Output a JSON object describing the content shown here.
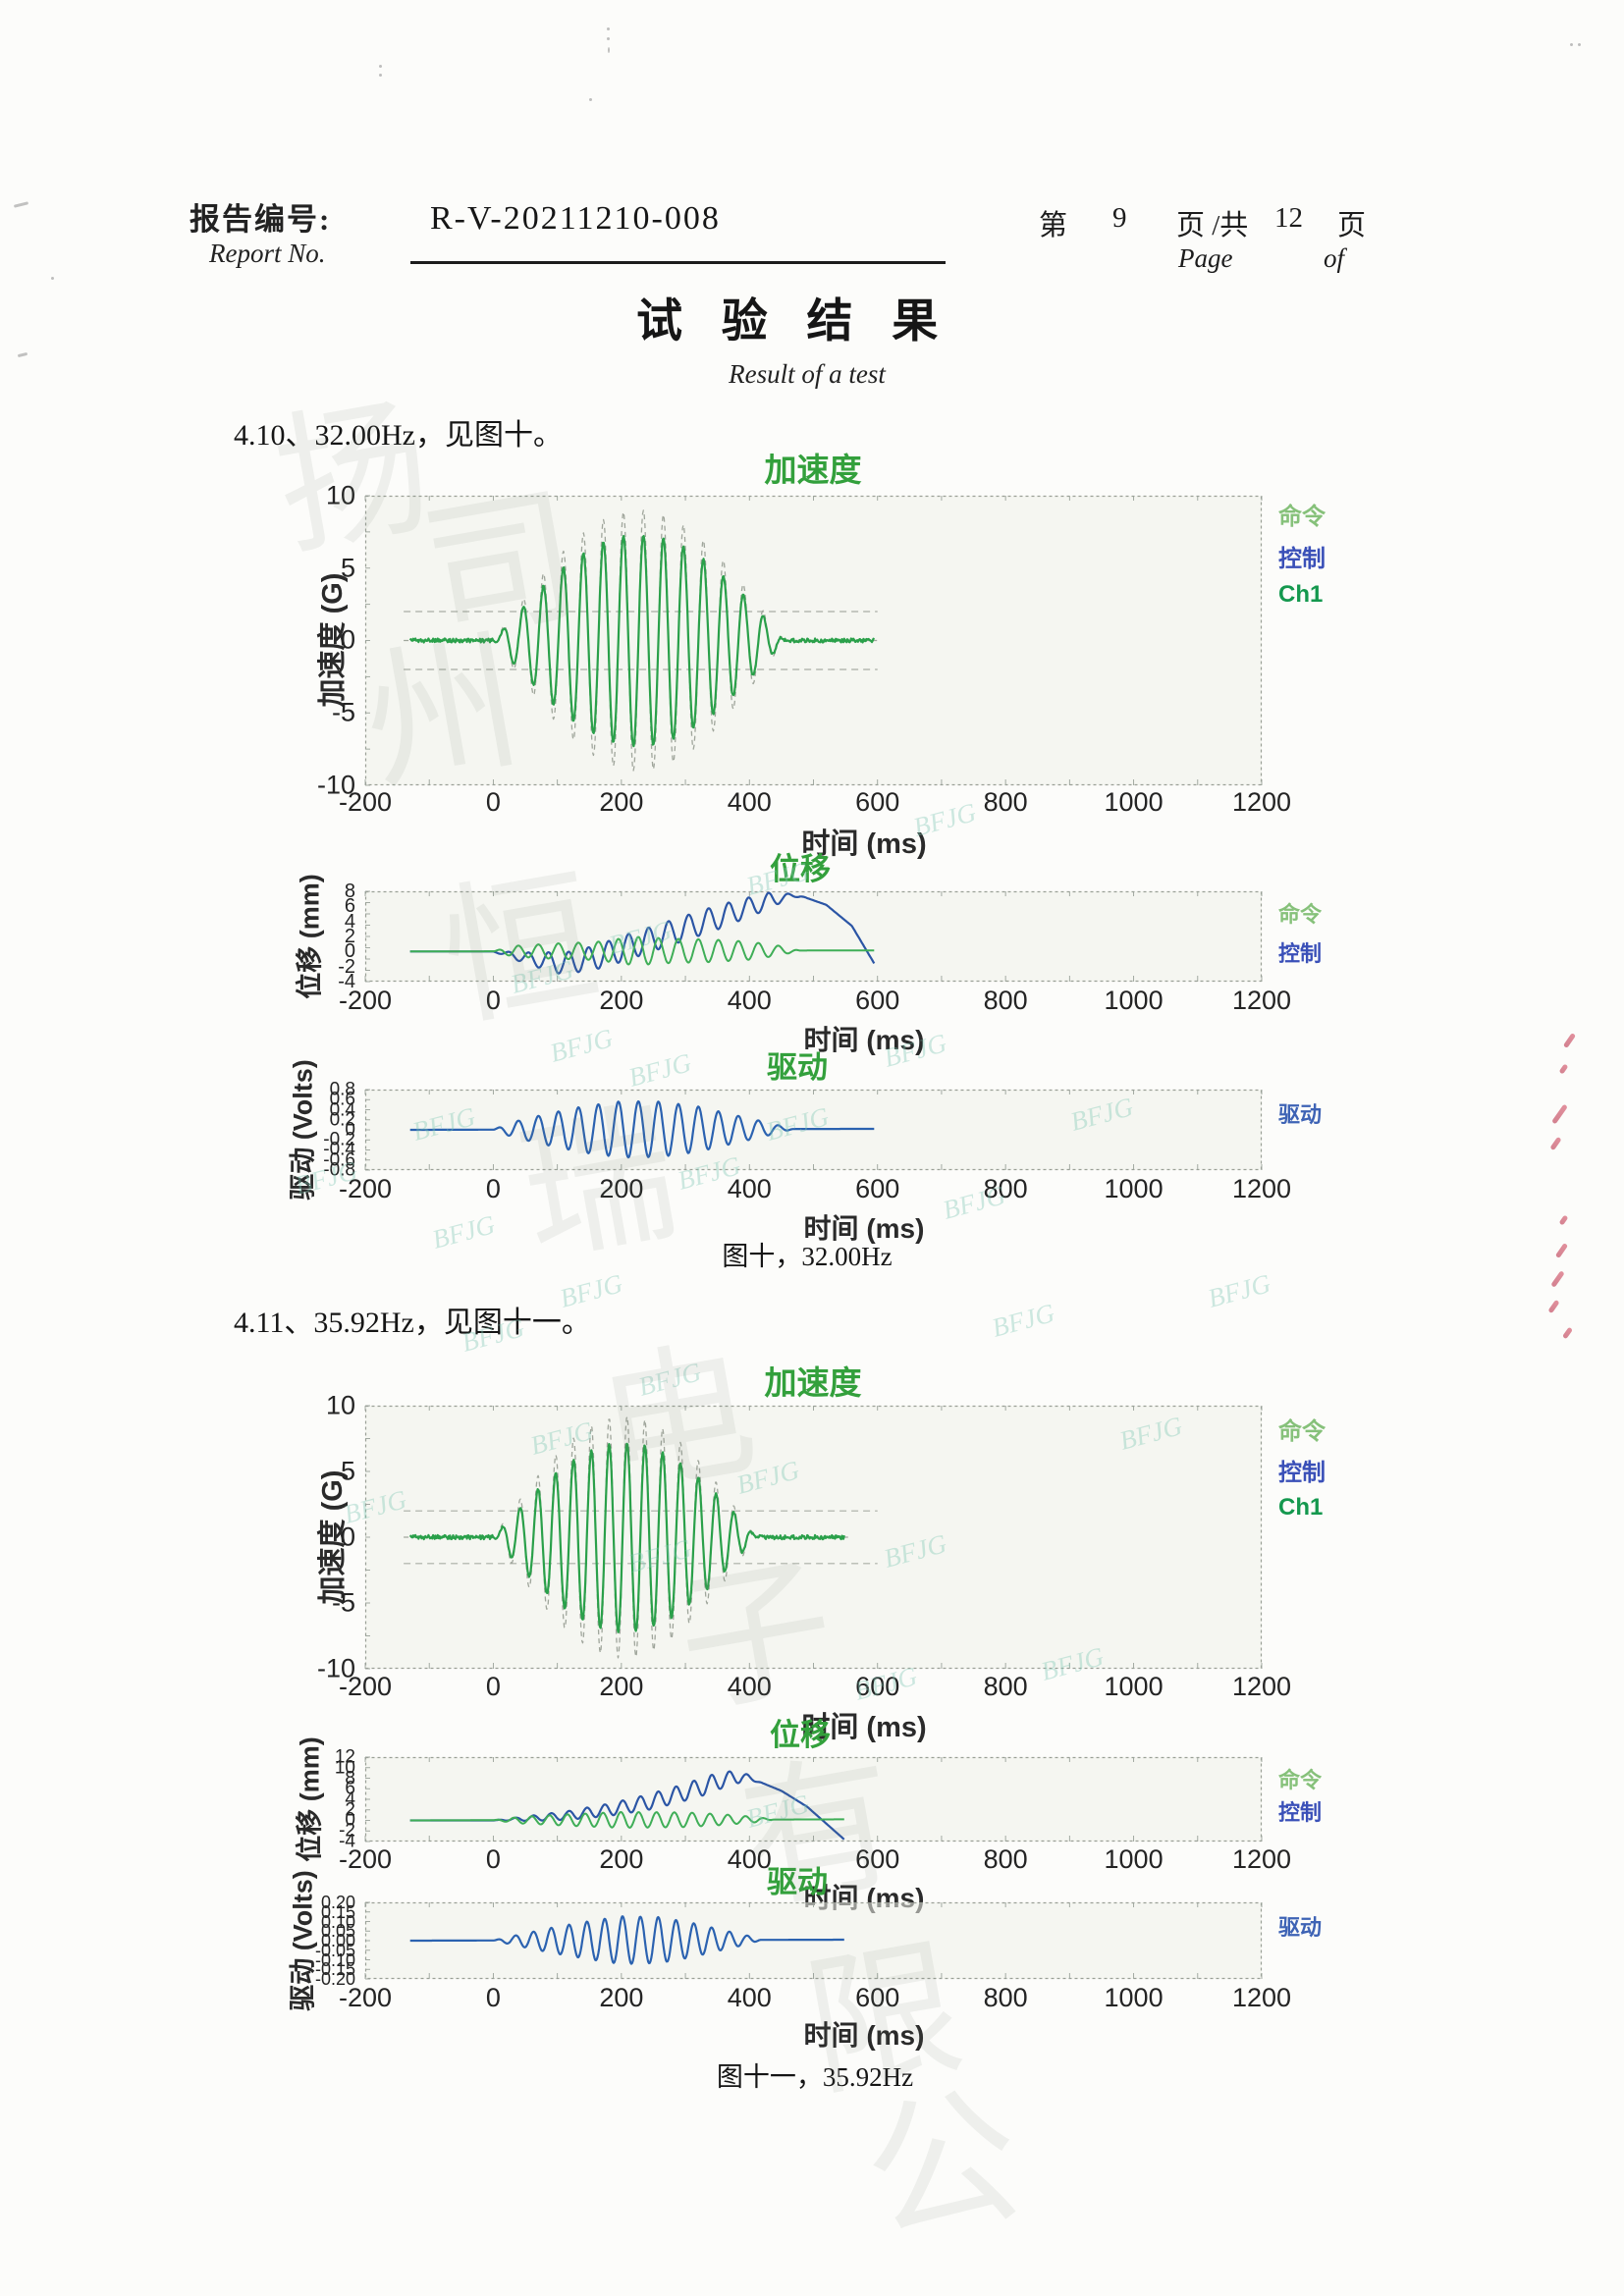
{
  "page": {
    "header": {
      "report_label_zh": "报告编号:",
      "report_label_en": "Report No.",
      "report_value": "R-V-20211210-008",
      "page_label_prefix": "第",
      "page_number": "9",
      "page_label_mid": "页 /共",
      "page_total": "12",
      "page_label_suffix": "页",
      "page_en": "Page",
      "of_en": "of"
    },
    "title_zh": "试 验 结 果",
    "subtitle_en": "Result of a test",
    "sections": [
      {
        "heading": "4.10、32.00Hz，见图十。",
        "caption": "图十，32.00Hz"
      },
      {
        "heading": "4.11、35.92Hz，见图十一。",
        "caption": "图十一，35.92Hz"
      }
    ],
    "watermarks": {
      "script_text": "BFJG",
      "company_text": "扬州恒瑞电子有限公司"
    }
  },
  "chart_data": [
    {
      "id": "fig10-acceleration",
      "type": "line",
      "title": "加速度",
      "title_color": "#33a03c",
      "ylabel": "加速度 (G)",
      "xlabel": "时间 (ms)",
      "xlim": [
        -200,
        1200
      ],
      "ylim": [
        -10,
        10
      ],
      "xticks": [
        "-200",
        "0",
        "200",
        "400",
        "600",
        "800",
        "1000",
        "1200"
      ],
      "yticks": [
        "10",
        "5",
        "0",
        "-5",
        "-10"
      ],
      "legend": [
        {
          "label": "命令",
          "color": "#86c17a"
        },
        {
          "label": "控制",
          "color": "#3a50b8"
        },
        {
          "label": "Ch1",
          "color": "#14984e"
        }
      ],
      "guides": {
        "y": [
          2,
          -2
        ],
        "color": "#a9ada5"
      },
      "series": [
        {
          "name": "command-tolerance",
          "model": "tone_burst",
          "freq_hz": 32,
          "t_start": 0,
          "t_end": 455,
          "peak": 9.0,
          "noise": 0,
          "t_min": -140,
          "t_max": 600,
          "color": "#a0a69c",
          "dash": "5 4",
          "width": 1.3
        },
        {
          "name": "ch1-response",
          "model": "tone_burst",
          "freq_hz": 32,
          "t_start": 0,
          "t_end": 455,
          "peak": 7.3,
          "noise": 0.14,
          "t_min": -130,
          "t_max": 595,
          "color": "#2aa04a",
          "dash": "",
          "width": 2.2
        }
      ]
    },
    {
      "id": "fig10-displacement",
      "type": "line",
      "title": "位移",
      "title_color": "#33a03c",
      "ylabel": "位移 (mm)",
      "xlabel": "时间 (ms)",
      "xlim": [
        -200,
        1200
      ],
      "ylim": [
        -4,
        8
      ],
      "xticks": [
        "-200",
        "0",
        "200",
        "400",
        "600",
        "800",
        "1000",
        "1200"
      ],
      "yticks": [
        "8",
        "6",
        "4",
        "2",
        "0",
        "-2",
        "-4"
      ],
      "legend": [
        {
          "label": "命令",
          "color": "#86c17a"
        },
        {
          "label": "控制",
          "color": "#3a50b8"
        }
      ],
      "series": [
        {
          "name": "control",
          "model": "mean_osc",
          "freq_hz": 32,
          "phase": 3.1,
          "color": "#2b55a5",
          "width": 2.2,
          "t_min": -130,
          "t_max": 595,
          "mean": [
            [
              -130,
              0
            ],
            [
              0,
              0
            ],
            [
              60,
              -1.0
            ],
            [
              110,
              -1.6
            ],
            [
              160,
              -0.8
            ],
            [
              210,
              0.6
            ],
            [
              260,
              2.0
            ],
            [
              310,
              3.4
            ],
            [
              360,
              4.8
            ],
            [
              410,
              6.2
            ],
            [
              450,
              7.2
            ],
            [
              480,
              7.4
            ],
            [
              520,
              6.2
            ],
            [
              560,
              3.4
            ],
            [
              595,
              -1.6
            ]
          ],
          "amp": [
            [
              -130,
              0
            ],
            [
              0,
              0
            ],
            [
              40,
              0.6
            ],
            [
              100,
              1.4
            ],
            [
              200,
              1.7
            ],
            [
              350,
              1.6
            ],
            [
              430,
              1.1
            ],
            [
              470,
              0.2
            ],
            [
              490,
              0
            ],
            [
              595,
              0
            ]
          ]
        },
        {
          "name": "command",
          "model": "mean_osc",
          "freq_hz": 32,
          "phase": 0,
          "color": "#3fae57",
          "width": 2.0,
          "t_min": -130,
          "t_max": 595,
          "mean": [
            [
              -130,
              0
            ],
            [
              595,
              0.15
            ]
          ],
          "amp": [
            [
              -130,
              0
            ],
            [
              0,
              0
            ],
            [
              30,
              0.7
            ],
            [
              90,
              1.0
            ],
            [
              160,
              1.2
            ],
            [
              220,
              1.9
            ],
            [
              280,
              1.6
            ],
            [
              340,
              1.5
            ],
            [
              400,
              1.2
            ],
            [
              450,
              0.6
            ],
            [
              478,
              0
            ],
            [
              595,
              0
            ]
          ]
        }
      ]
    },
    {
      "id": "fig10-drive",
      "type": "line",
      "title": "驱动",
      "title_color": "#33a03c",
      "ylabel": "驱动 (Volts)",
      "xlabel": "时间 (ms)",
      "xlim": [
        -200,
        1200
      ],
      "ylim": [
        -0.8,
        0.8
      ],
      "xticks": [
        "-200",
        "0",
        "200",
        "400",
        "600",
        "800",
        "1000",
        "1200"
      ],
      "yticks": [
        "0.8",
        "0.6",
        "0.4",
        "0.2",
        "0",
        "-0.2",
        "-0.4",
        "-0.6",
        "-0.8"
      ],
      "legend": [
        {
          "label": "驱动",
          "color": "#3e63b5"
        }
      ],
      "series": [
        {
          "name": "drive",
          "model": "mean_osc",
          "freq_hz": 32,
          "phase": 0,
          "color": "#2b62b0",
          "width": 2.2,
          "t_min": -130,
          "t_max": 595,
          "mean": [
            [
              -130,
              0
            ],
            [
              595,
              0.02
            ]
          ],
          "amp": [
            [
              -130,
              0
            ],
            [
              0,
              0
            ],
            [
              30,
              0.15
            ],
            [
              80,
              0.3
            ],
            [
              140,
              0.46
            ],
            [
              200,
              0.56
            ],
            [
              260,
              0.55
            ],
            [
              320,
              0.45
            ],
            [
              370,
              0.3
            ],
            [
              415,
              0.17
            ],
            [
              450,
              0.06
            ],
            [
              468,
              0
            ],
            [
              595,
              0
            ]
          ]
        }
      ]
    },
    {
      "id": "fig11-acceleration",
      "type": "line",
      "title": "加速度",
      "title_color": "#33a03c",
      "ylabel": "加速度 (G)",
      "xlabel": "时间 (ms)",
      "xlim": [
        -200,
        1200
      ],
      "ylim": [
        -10,
        10
      ],
      "xticks": [
        "-200",
        "0",
        "200",
        "400",
        "600",
        "800",
        "1000",
        "1200"
      ],
      "yticks": [
        "10",
        "5",
        "0",
        "-5",
        "-10"
      ],
      "legend": [
        {
          "label": "命令",
          "color": "#86c17a"
        },
        {
          "label": "控制",
          "color": "#3a50b8"
        },
        {
          "label": "Ch1",
          "color": "#14984e"
        }
      ],
      "guides": {
        "y": [
          2,
          -2
        ],
        "color": "#a9ada5"
      },
      "series": [
        {
          "name": "command-tolerance",
          "model": "tone_burst",
          "freq_hz": 35.92,
          "t_start": 0,
          "t_end": 410,
          "peak": 9.2,
          "noise": 0,
          "t_min": -140,
          "t_max": 560,
          "color": "#a0a69c",
          "dash": "5 4",
          "width": 1.3
        },
        {
          "name": "ch1-response",
          "model": "tone_burst",
          "freq_hz": 35.92,
          "t_start": 0,
          "t_end": 410,
          "peak": 7.2,
          "noise": 0.16,
          "t_min": -130,
          "t_max": 548,
          "color": "#2aa04a",
          "dash": "",
          "width": 2.2
        }
      ]
    },
    {
      "id": "fig11-displacement",
      "type": "line",
      "title": "位移",
      "title_color": "#33a03c",
      "ylabel": "位移 (mm)",
      "xlabel": "时间 (ms)",
      "xlim": [
        -200,
        1200
      ],
      "ylim": [
        -4,
        12
      ],
      "xticks": [
        "-200",
        "0",
        "200",
        "400",
        "600",
        "800",
        "1000",
        "1200"
      ],
      "yticks": [
        "12",
        "10",
        "8",
        "6",
        "4",
        "2",
        "0",
        "-2",
        "-4"
      ],
      "legend": [
        {
          "label": "命令",
          "color": "#86c17a"
        },
        {
          "label": "控制",
          "color": "#3a50b8"
        }
      ],
      "series": [
        {
          "name": "control",
          "model": "mean_osc",
          "freq_hz": 35.92,
          "phase": 0,
          "color": "#2b55a5",
          "width": 2.2,
          "t_min": -130,
          "t_max": 548,
          "mean": [
            [
              -130,
              0
            ],
            [
              0,
              0
            ],
            [
              60,
              0.4
            ],
            [
              120,
              1.0
            ],
            [
              180,
              2.0
            ],
            [
              240,
              3.4
            ],
            [
              290,
              5.0
            ],
            [
              330,
              6.5
            ],
            [
              365,
              7.9
            ],
            [
              388,
              8.3
            ],
            [
              410,
              7.6
            ],
            [
              450,
              5.6
            ],
            [
              490,
              2.6
            ],
            [
              548,
              -3.6
            ]
          ],
          "amp": [
            [
              -130,
              0
            ],
            [
              0,
              0
            ],
            [
              60,
              0.5
            ],
            [
              150,
              1.0
            ],
            [
              250,
              1.5
            ],
            [
              340,
              1.7
            ],
            [
              385,
              1.1
            ],
            [
              405,
              0.4
            ],
            [
              420,
              0
            ],
            [
              548,
              0
            ]
          ]
        },
        {
          "name": "command",
          "model": "mean_osc",
          "freq_hz": 35.92,
          "phase": 0.6,
          "color": "#3fae57",
          "width": 2.0,
          "t_min": -130,
          "t_max": 548,
          "mean": [
            [
              -130,
              0
            ],
            [
              548,
              0.2
            ]
          ],
          "amp": [
            [
              -130,
              0
            ],
            [
              0,
              0
            ],
            [
              40,
              0.6
            ],
            [
              120,
              1.1
            ],
            [
              200,
              1.5
            ],
            [
              300,
              1.4
            ],
            [
              360,
              1.0
            ],
            [
              410,
              0.5
            ],
            [
              438,
              0
            ],
            [
              548,
              0
            ]
          ]
        }
      ]
    },
    {
      "id": "fig11-drive",
      "type": "line",
      "title": "驱动",
      "title_color": "#33a03c",
      "ylabel": "驱动 (Volts)",
      "xlabel": "时间 (ms)",
      "xlim": [
        -200,
        1200
      ],
      "ylim": [
        -0.2,
        0.2
      ],
      "xticks": [
        "-200",
        "0",
        "200",
        "400",
        "600",
        "800",
        "1000",
        "1200"
      ],
      "yticks": [
        "0.20",
        "0.15",
        "0.10",
        "0.05",
        "0.00",
        "-0.05",
        "-0.10",
        "-0.15",
        "-0.20"
      ],
      "legend": [
        {
          "label": "驱动",
          "color": "#3e63b5"
        }
      ],
      "series": [
        {
          "name": "drive",
          "model": "mean_osc",
          "freq_hz": 35.92,
          "phase": 0,
          "color": "#2b62b0",
          "width": 2.2,
          "t_min": -130,
          "t_max": 548,
          "mean": [
            [
              -130,
              0
            ],
            [
              548,
              0.005
            ]
          ],
          "amp": [
            [
              -130,
              0
            ],
            [
              0,
              0
            ],
            [
              40,
              0.03
            ],
            [
              90,
              0.065
            ],
            [
              150,
              0.1
            ],
            [
              200,
              0.125
            ],
            [
              260,
              0.12
            ],
            [
              310,
              0.09
            ],
            [
              360,
              0.05
            ],
            [
              400,
              0.02
            ],
            [
              418,
              0
            ],
            [
              548,
              0
            ]
          ]
        }
      ]
    }
  ]
}
